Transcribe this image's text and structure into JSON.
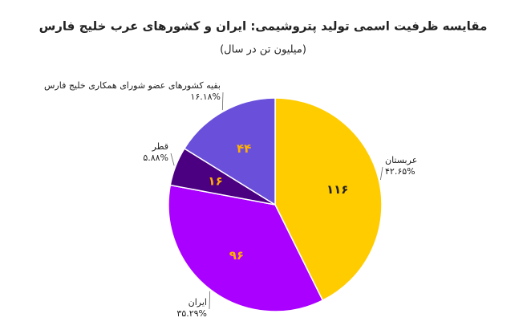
{
  "chart_data": {
    "type": "pie",
    "title": "مقایسه ظرفیت اسمی تولید پتروشیمی: ایران و کشورهای عرب خلیج فارس",
    "subtitle": "(میلیون تن در سال)",
    "categories": [
      "عربستان",
      "ایران",
      "قطر",
      "بقیه کشورهای عضو شورای همکاری خلیج فارس"
    ],
    "values": [
      116,
      96,
      16,
      44
    ],
    "value_labels": [
      "۱۱۶",
      "۹۶",
      "۱۶",
      "۴۴"
    ],
    "percentages": [
      42.65,
      35.29,
      5.88,
      16.18
    ],
    "percentage_labels": [
      "۴۲.۶۵%",
      "۳۵.۲۹%",
      "۵.۸۸%",
      "۱۶.۱۸%"
    ],
    "colors": [
      "#ffcc00",
      "#aa00ff",
      "#4b0082",
      "#6a4fdb"
    ]
  }
}
